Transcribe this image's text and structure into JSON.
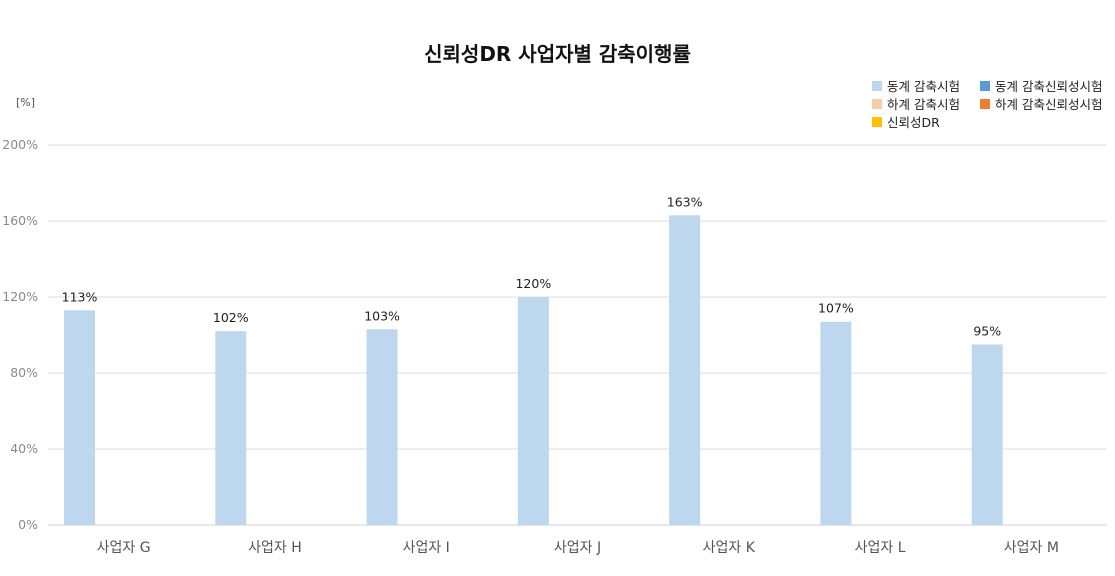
{
  "chart_data": {
    "type": "bar",
    "title": "신뢰성DR 사업자별 감축이행률",
    "unit_label": "[%]",
    "categories": [
      "사업자 G",
      "사업자 H",
      "사업자 I",
      "사업자 J",
      "사업자 K",
      "사업자 L",
      "사업자 M"
    ],
    "series": [
      {
        "name": "동계 감축시험",
        "color": "#bdd7ee",
        "values": [
          113,
          102,
          103,
          120,
          163,
          107,
          95
        ]
      },
      {
        "name": "하계 감축시험",
        "color": "#f8cbad",
        "values": [
          null,
          null,
          null,
          null,
          null,
          null,
          null
        ]
      },
      {
        "name": "신뢰성DR",
        "color": "#ffc000",
        "values": [
          null,
          null,
          null,
          null,
          null,
          null,
          null
        ]
      },
      {
        "name": "동계 감축신뢰성시험",
        "color": "#5b9bd5",
        "values": [
          null,
          null,
          null,
          null,
          null,
          null,
          null
        ]
      },
      {
        "name": "하계 감축신뢰성시험",
        "color": "#ed7d31",
        "values": [
          null,
          null,
          null,
          null,
          null,
          null,
          null
        ]
      }
    ],
    "data_labels": [
      "113%",
      "102%",
      "103%",
      "120%",
      "163%",
      "107%",
      "95%"
    ],
    "ylim": [
      0,
      200
    ],
    "yticks": [
      0,
      40,
      80,
      120,
      160,
      200
    ],
    "ytick_labels": [
      "0%",
      "40%",
      "80%",
      "120%",
      "160%",
      "200%"
    ],
    "grid": true,
    "legend_position": "top-right"
  }
}
